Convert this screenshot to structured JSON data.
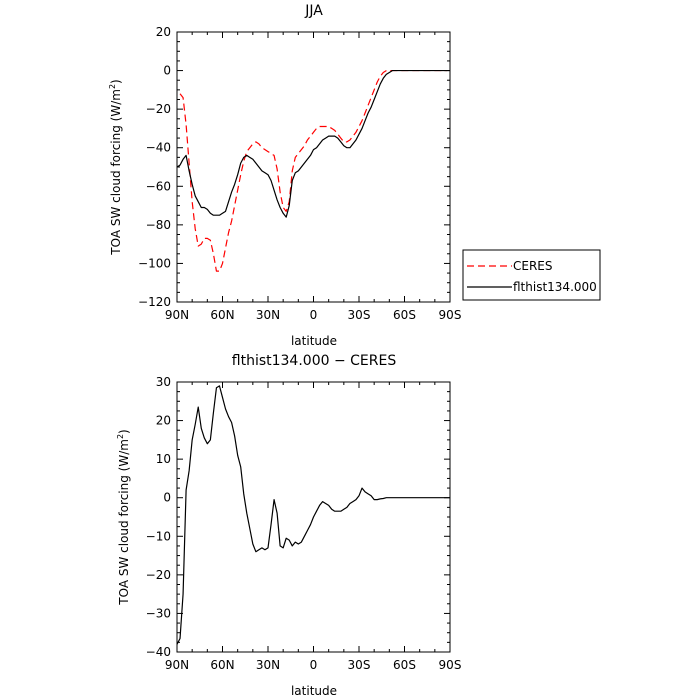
{
  "chart_data": [
    {
      "type": "line",
      "title": "JJA",
      "xlabel": "latitude",
      "ylabel": "TOA SW cloud forcing (W/m²)",
      "ylabel_main": "TOA SW cloud forcing (W/m",
      "ylabel_sup": "2",
      "ylabel_close": ")",
      "xlim": [
        90,
        -90
      ],
      "ylim": [
        -120,
        20
      ],
      "xticks": [
        90,
        60,
        30,
        0,
        -30,
        -60,
        -90
      ],
      "xtick_labels": [
        "90N",
        "60N",
        "30N",
        "0",
        "30S",
        "60S",
        "90S"
      ],
      "yticks": [
        -120,
        -100,
        -80,
        -60,
        -40,
        -20,
        0,
        20
      ],
      "ytick_labels": [
        "−120",
        "−100",
        "−80",
        "−60",
        "−40",
        "−20",
        "0",
        "20"
      ],
      "grid": false,
      "legend": "right",
      "series": [
        {
          "name": "CERES",
          "color": "#ff0000",
          "dash": "dashed",
          "x": [
            88,
            86,
            84,
            82,
            80,
            78,
            76,
            74,
            72,
            70,
            68,
            66,
            64,
            62,
            60,
            58,
            56,
            54,
            52,
            50,
            48,
            46,
            44,
            42,
            40,
            38,
            36,
            34,
            32,
            30,
            28,
            26,
            24,
            22,
            20,
            18,
            16,
            14,
            12,
            10,
            8,
            6,
            4,
            2,
            0,
            -2,
            -4,
            -6,
            -8,
            -10,
            -12,
            -14,
            -16,
            -18,
            -20,
            -22,
            -24,
            -26,
            -28,
            -30,
            -32,
            -34,
            -36,
            -38,
            -40,
            -42,
            -44,
            -46,
            -48,
            -50,
            -52,
            -54,
            -56,
            -58,
            -60,
            -62,
            -64,
            -66,
            -68,
            -70,
            -72,
            -74,
            -76,
            -78,
            -80,
            -82,
            -84,
            -86,
            -88
          ],
          "y": [
            -12,
            -14,
            -28,
            -48,
            -68,
            -82,
            -91,
            -90,
            -87,
            -87,
            -88,
            -95,
            -104,
            -104,
            -100,
            -92,
            -84,
            -78,
            -70,
            -62,
            -54,
            -47,
            -42,
            -40,
            -38,
            -37,
            -38,
            -40,
            -41,
            -42,
            -43,
            -44,
            -51,
            -63,
            -71,
            -73,
            -68,
            -52,
            -45,
            -43,
            -41,
            -39,
            -36,
            -34,
            -32,
            -30,
            -29,
            -29,
            -29,
            -29,
            -30,
            -31,
            -33,
            -35,
            -37,
            -37,
            -36,
            -34,
            -32,
            -29,
            -26,
            -22,
            -18,
            -14,
            -10,
            -6,
            -3,
            -1,
            0,
            0,
            0,
            0,
            0,
            0,
            0,
            0,
            0,
            0,
            0,
            0,
            0,
            0,
            0,
            0,
            0,
            0,
            0,
            0,
            0
          ]
        },
        {
          "name": "flthist134.000",
          "color": "#000000",
          "dash": "solid",
          "x": [
            90,
            88,
            86,
            84,
            82,
            80,
            78,
            76,
            74,
            72,
            70,
            68,
            66,
            64,
            62,
            60,
            58,
            56,
            54,
            52,
            50,
            48,
            46,
            44,
            42,
            40,
            38,
            36,
            34,
            32,
            30,
            28,
            26,
            24,
            22,
            20,
            18,
            16,
            14,
            12,
            10,
            8,
            6,
            4,
            2,
            0,
            -2,
            -4,
            -6,
            -8,
            -10,
            -12,
            -14,
            -16,
            -18,
            -20,
            -22,
            -24,
            -26,
            -28,
            -30,
            -32,
            -34,
            -36,
            -38,
            -40,
            -42,
            -44,
            -46,
            -48,
            -50,
            -52,
            -54,
            -56,
            -58,
            -60,
            -62,
            -64,
            -66,
            -68,
            -70,
            -72,
            -74,
            -76,
            -78,
            -80,
            -82,
            -84,
            -86,
            -88,
            -90
          ],
          "y": [
            -50,
            -49,
            -46,
            -44,
            -52,
            -59,
            -65,
            -68,
            -71,
            -71,
            -72,
            -74,
            -75,
            -75,
            -75,
            -74,
            -73,
            -68,
            -63,
            -59,
            -54,
            -48,
            -45,
            -44,
            -45,
            -46,
            -48,
            -50,
            -52,
            -53,
            -54,
            -57,
            -62,
            -67,
            -71,
            -74,
            -76,
            -70,
            -57,
            -53,
            -52,
            -50,
            -48,
            -46,
            -44,
            -41,
            -40,
            -38,
            -36,
            -35,
            -34,
            -34,
            -34,
            -35,
            -37,
            -39,
            -40,
            -40,
            -38,
            -36,
            -33,
            -30,
            -26,
            -22,
            -19,
            -15,
            -11,
            -7,
            -4,
            -2,
            -1,
            0,
            0,
            0,
            0,
            0,
            0,
            0,
            0,
            0,
            0,
            0,
            0,
            0,
            0,
            0,
            0,
            0,
            0,
            0,
            0
          ]
        }
      ]
    },
    {
      "type": "line",
      "title": "flthist134.000 − CERES",
      "xlabel": "latitude",
      "ylabel": "TOA SW cloud forcing (W/m²)",
      "ylabel_main": "TOA SW cloud forcing (W/m",
      "ylabel_sup": "2",
      "ylabel_close": ")",
      "xlim": [
        90,
        -90
      ],
      "ylim": [
        -40,
        30
      ],
      "xticks": [
        90,
        60,
        30,
        0,
        -30,
        -60,
        -90
      ],
      "xtick_labels": [
        "90N",
        "60N",
        "30N",
        "0",
        "30S",
        "60S",
        "90S"
      ],
      "yticks": [
        -40,
        -30,
        -20,
        -10,
        0,
        10,
        20,
        30
      ],
      "ytick_labels": [
        "−40",
        "−30",
        "−20",
        "−10",
        "0",
        "10",
        "20",
        "30"
      ],
      "grid": false,
      "series": [
        {
          "name": "",
          "color": "#000000",
          "dash": "solid",
          "x": [
            90,
            88,
            86,
            84,
            82,
            80,
            78,
            76,
            74,
            72,
            70,
            68,
            66,
            64,
            62,
            60,
            58,
            56,
            54,
            52,
            50,
            48,
            46,
            44,
            42,
            40,
            38,
            36,
            34,
            32,
            30,
            28,
            26,
            24,
            22,
            20,
            18,
            16,
            14,
            12,
            10,
            8,
            6,
            4,
            2,
            0,
            -2,
            -4,
            -6,
            -8,
            -10,
            -12,
            -14,
            -16,
            -18,
            -20,
            -22,
            -24,
            -26,
            -28,
            -30,
            -32,
            -34,
            -36,
            -38,
            -40,
            -42,
            -44,
            -46,
            -48,
            -50,
            -52,
            -54,
            -56,
            -58,
            -60,
            -62,
            -64,
            -66,
            -68,
            -70,
            -72,
            -74,
            -76,
            -78,
            -80,
            -82,
            -84,
            -86,
            -88,
            -90
          ],
          "y": [
            -38,
            -36.5,
            -25,
            2,
            7,
            15,
            19,
            23.5,
            18,
            15.5,
            14,
            15,
            22,
            28.5,
            29,
            26,
            23,
            21,
            19.5,
            16,
            11,
            8,
            1,
            -4,
            -8,
            -12,
            -14,
            -13.5,
            -13,
            -13.5,
            -13,
            -7,
            -0.5,
            -4,
            -12.5,
            -13,
            -10.5,
            -11,
            -12.5,
            -11.5,
            -12,
            -11.5,
            -10,
            -8.5,
            -7,
            -5,
            -3.5,
            -2,
            -1,
            -1.5,
            -2,
            -3,
            -3.5,
            -3.5,
            -3.5,
            -3,
            -2.5,
            -1.5,
            -1,
            -0.5,
            0.5,
            2.5,
            1.5,
            1,
            0.5,
            -0.5,
            -0.5,
            -0.3,
            -0.2,
            0,
            0,
            0,
            0,
            0,
            0,
            0,
            0,
            0,
            0,
            0,
            0,
            0,
            0,
            0,
            0,
            0,
            0,
            0,
            0,
            0,
            0
          ]
        }
      ]
    }
  ]
}
